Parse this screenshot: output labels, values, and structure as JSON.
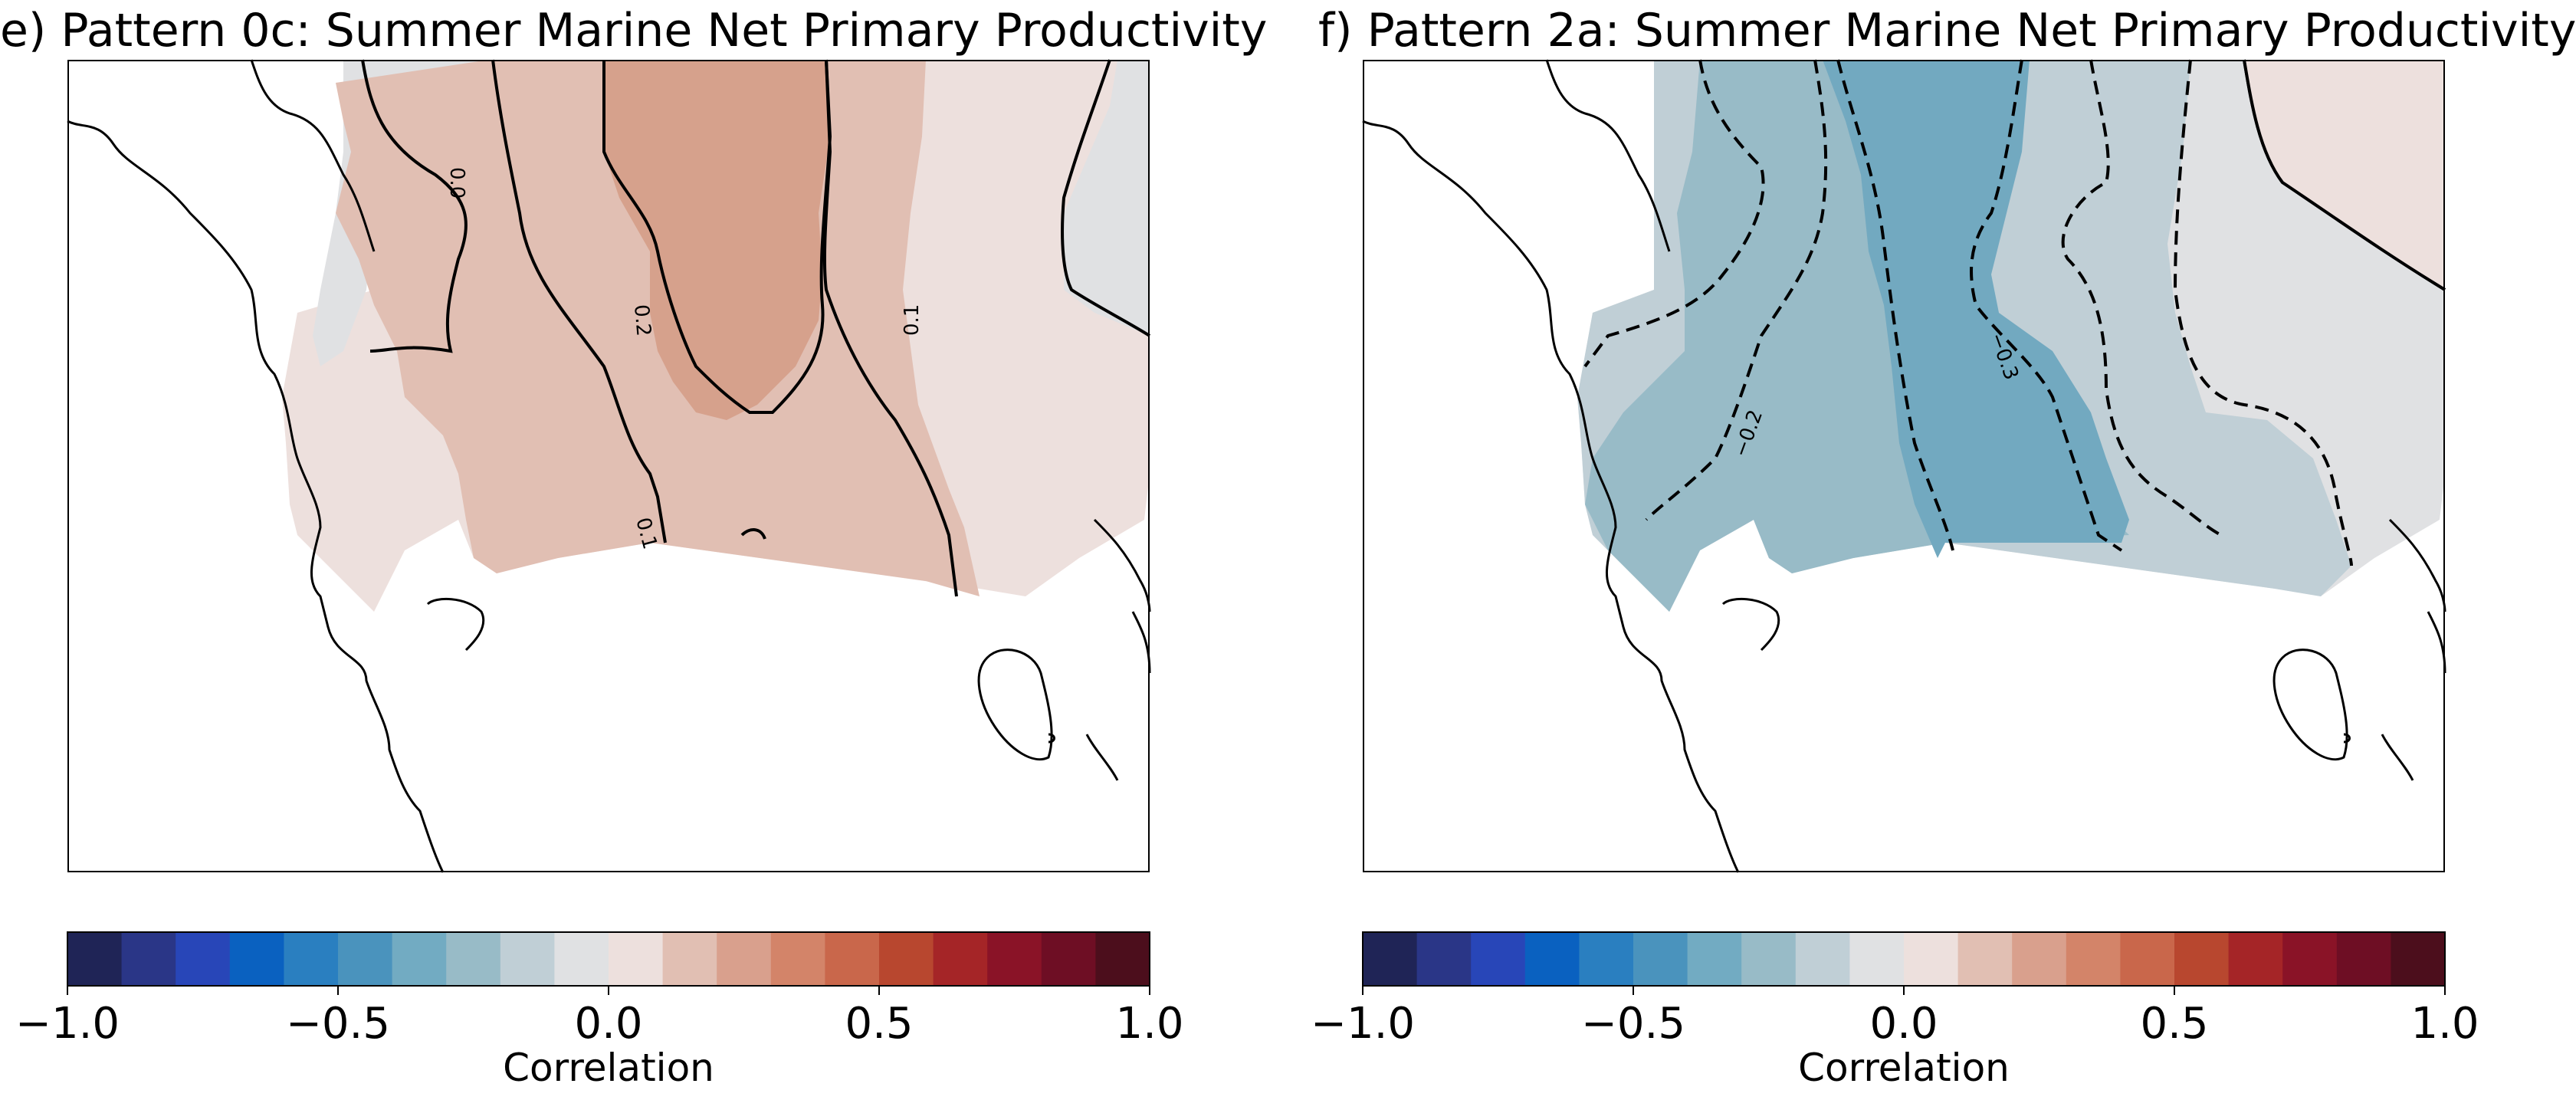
{
  "panels": [
    {
      "title": "e) Pattern 0c: Summer Marine Net Primary Productivity",
      "contour_labels": [
        "0.0",
        "0.2",
        "0.1",
        "0.1"
      ]
    },
    {
      "title": "f) Pattern 2a: Summer Marine Net Primary Productivity",
      "contour_labels": [
        "−0.3",
        "−0.2"
      ]
    }
  ],
  "colorbar": {
    "label": "Correlation",
    "ticks": [
      "−1.0",
      "−0.5",
      "0.0",
      "0.5",
      "1.0"
    ],
    "colors": [
      "#1f2456",
      "#2a3687",
      "#2846b8",
      "#0a61c0",
      "#2a7fc0",
      "#4a93bd",
      "#72abc2",
      "#98bbc7",
      "#c0cfd6",
      "#e0e1e3",
      "#ede0dd",
      "#e1bfb3",
      "#d9a08d",
      "#d38469",
      "#c9674b",
      "#b8472f",
      "#a52527",
      "#8a1327",
      "#6e0e24",
      "#4c0e1c"
    ]
  },
  "chart_data": [
    {
      "type": "heatmap",
      "title": "e) Pattern 0c: Summer Marine Net Primary Productivity",
      "colorbar_label": "Correlation",
      "colorbar_range": [
        -1.0,
        1.0
      ],
      "colorbar_ticks": [
        -1.0,
        -0.5,
        0.0,
        0.5,
        1.0
      ],
      "contour_levels_labeled": [
        0.0,
        0.1,
        0.2
      ],
      "field_range_approx": [
        -0.05,
        0.25
      ]
    },
    {
      "type": "heatmap",
      "title": "f) Pattern 2a: Summer Marine Net Primary Productivity",
      "colorbar_label": "Correlation",
      "colorbar_range": [
        -1.0,
        1.0
      ],
      "colorbar_ticks": [
        -1.0,
        -0.5,
        0.0,
        0.5,
        1.0
      ],
      "contour_levels_labeled": [
        -0.3,
        -0.2
      ],
      "field_range_approx": [
        -0.35,
        0.05
      ]
    }
  ]
}
